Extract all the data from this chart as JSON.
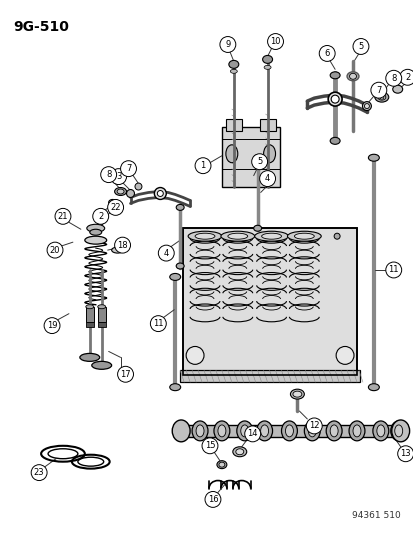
{
  "title": "9G-510",
  "background_color": "#ffffff",
  "line_color": "#000000",
  "footer_text": "94361 510",
  "fig_width": 4.14,
  "fig_height": 5.33,
  "dpi": 100
}
